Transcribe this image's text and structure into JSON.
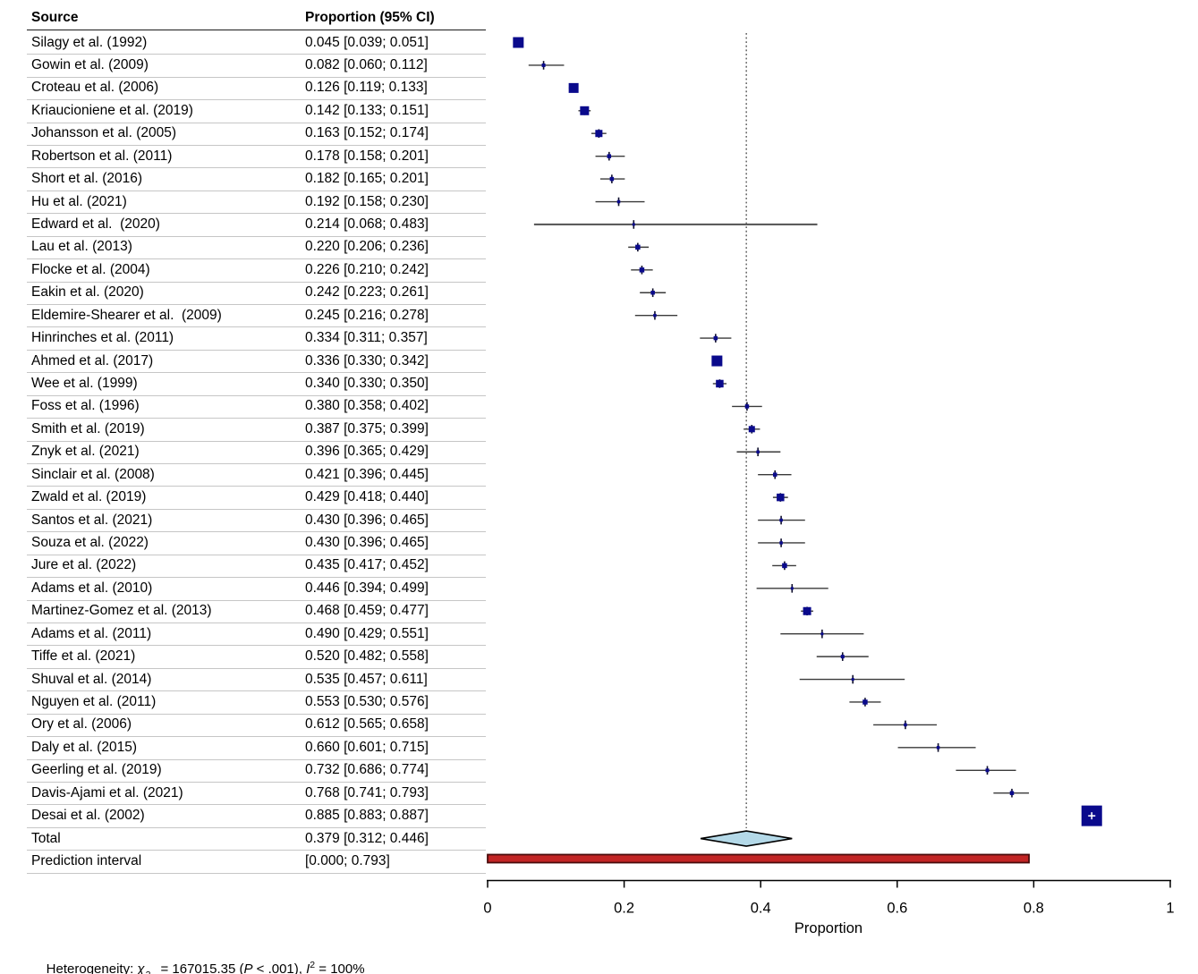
{
  "columns": {
    "source": "Source",
    "proportion": "Proportion (95% CI)"
  },
  "axis": {
    "label": "Proportion"
  },
  "heterogeneity": {
    "prefix": "Heterogeneity: ",
    "chi": "χ",
    "chi_sup": "2",
    "chi_sub": "34",
    "mid1": " = 167015.35 (",
    "p_label": "P",
    "mid2": " < .001), ",
    "i_label": "I",
    "i_sup": "2",
    "suffix": " = 100%"
  },
  "colors": {
    "marker": "#0a0a8c",
    "tick": "#0d0d2b",
    "ci_line": "#3a3a3a",
    "ref_line": "#555555",
    "diamond_fill": "#b4d9e8",
    "diamond_stroke": "#000000",
    "prediction_fill": "#c22424",
    "prediction_stroke": "#4a0c0c",
    "axis": "#000000",
    "separator": "#c6c6c6"
  },
  "chart_data": {
    "type": "scatter",
    "variant": "forest-plot",
    "title": "",
    "xlabel": "Proportion",
    "xlim": [
      0,
      1
    ],
    "x_ticks": [
      0,
      0.2,
      0.4,
      0.6,
      0.8,
      1
    ],
    "x_tick_labels": [
      "0",
      "0.2",
      "0.4",
      "0.6",
      "0.8",
      "1"
    ],
    "reference_line": 0.379,
    "studies": [
      {
        "name": "Silagy et al. (1992)",
        "ci_label": "0.045 [0.039; 0.051]",
        "est": 0.045,
        "lo": 0.039,
        "hi": 0.051,
        "size": 12
      },
      {
        "name": "Gowin et al. (2009)",
        "ci_label": "0.082 [0.060; 0.112]",
        "est": 0.082,
        "lo": 0.06,
        "hi": 0.112,
        "size": 4
      },
      {
        "name": "Croteau et al. (2006)",
        "ci_label": "0.126 [0.119; 0.133]",
        "est": 0.126,
        "lo": 0.119,
        "hi": 0.133,
        "size": 11
      },
      {
        "name": "Kriaucioniene et al. (2019)",
        "ci_label": "0.142 [0.133; 0.151]",
        "est": 0.142,
        "lo": 0.133,
        "hi": 0.151,
        "size": 10
      },
      {
        "name": "Johansson et al. (2005)",
        "ci_label": "0.163 [0.152; 0.174]",
        "est": 0.163,
        "lo": 0.152,
        "hi": 0.174,
        "size": 8
      },
      {
        "name": "Robertson et al. (2011)",
        "ci_label": "0.178 [0.158; 0.201]",
        "est": 0.178,
        "lo": 0.158,
        "hi": 0.201,
        "size": 4.5
      },
      {
        "name": "Short et al. (2016)",
        "ci_label": "0.182 [0.165; 0.201]",
        "est": 0.182,
        "lo": 0.165,
        "hi": 0.201,
        "size": 4.5
      },
      {
        "name": "Hu et al. (2021)",
        "ci_label": "0.192 [0.158; 0.230]",
        "est": 0.192,
        "lo": 0.158,
        "hi": 0.23,
        "size": 3.5
      },
      {
        "name": "Edward et al.  (2020)",
        "ci_label": "0.214 [0.068; 0.483]",
        "est": 0.214,
        "lo": 0.068,
        "hi": 0.483,
        "size": 3,
        "lw": 2.2,
        "lc": "#5c5c5c"
      },
      {
        "name": "Lau et al. (2013)",
        "ci_label": "0.220 [0.206; 0.236]",
        "est": 0.22,
        "lo": 0.206,
        "hi": 0.236,
        "size": 5.5
      },
      {
        "name": "Flocke et al. (2004)",
        "ci_label": "0.226 [0.210; 0.242]",
        "est": 0.226,
        "lo": 0.21,
        "hi": 0.242,
        "size": 5.5
      },
      {
        "name": "Eakin et al. (2020)",
        "ci_label": "0.242 [0.223; 0.261]",
        "est": 0.242,
        "lo": 0.223,
        "hi": 0.261,
        "size": 4.5
      },
      {
        "name": "Eldemire-Shearer et al.  (2009)",
        "ci_label": "0.245 [0.216; 0.278]",
        "est": 0.245,
        "lo": 0.216,
        "hi": 0.278,
        "size": 3.5
      },
      {
        "name": "Hinrinches et al. (2011)",
        "ci_label": "0.334 [0.311; 0.357]",
        "est": 0.334,
        "lo": 0.311,
        "hi": 0.357,
        "size": 4.5
      },
      {
        "name": "Ahmed et al. (2017)",
        "ci_label": "0.336 [0.330; 0.342]",
        "est": 0.336,
        "lo": 0.33,
        "hi": 0.342,
        "size": 12
      },
      {
        "name": "Wee et al. (1999)",
        "ci_label": "0.340 [0.330; 0.350]",
        "est": 0.34,
        "lo": 0.33,
        "hi": 0.35,
        "size": 8.5
      },
      {
        "name": "Foss et al. (1996)",
        "ci_label": "0.380 [0.358; 0.402]",
        "est": 0.38,
        "lo": 0.358,
        "hi": 0.402,
        "size": 4.5
      },
      {
        "name": "Smith et al. (2019)",
        "ci_label": "0.387 [0.375; 0.399]",
        "est": 0.387,
        "lo": 0.375,
        "hi": 0.399,
        "size": 7
      },
      {
        "name": "Znyk et al. (2021)",
        "ci_label": "0.396 [0.365; 0.429]",
        "est": 0.396,
        "lo": 0.365,
        "hi": 0.429,
        "size": 3.5
      },
      {
        "name": "Sinclair et al. (2008)",
        "ci_label": "0.421 [0.396; 0.445]",
        "est": 0.421,
        "lo": 0.396,
        "hi": 0.445,
        "size": 4.5
      },
      {
        "name": "Zwald et al. (2019)",
        "ci_label": "0.429 [0.418; 0.440]",
        "est": 0.429,
        "lo": 0.418,
        "hi": 0.44,
        "size": 8.5
      },
      {
        "name": "Santos et al. (2021)",
        "ci_label": "0.430 [0.396; 0.465]",
        "est": 0.43,
        "lo": 0.396,
        "hi": 0.465,
        "size": 3.5
      },
      {
        "name": "Souza et al. (2022)",
        "ci_label": "0.430 [0.396; 0.465]",
        "est": 0.43,
        "lo": 0.396,
        "hi": 0.465,
        "size": 3.5
      },
      {
        "name": "Jure et al. (2022)",
        "ci_label": "0.435 [0.417; 0.452]",
        "est": 0.435,
        "lo": 0.417,
        "hi": 0.452,
        "size": 5.5
      },
      {
        "name": "Adams et al. (2010)",
        "ci_label": "0.446 [0.394; 0.499]",
        "est": 0.446,
        "lo": 0.394,
        "hi": 0.499,
        "size": 3
      },
      {
        "name": "Martinez-Gomez et al. (2013)",
        "ci_label": "0.468 [0.459; 0.477]",
        "est": 0.468,
        "lo": 0.459,
        "hi": 0.477,
        "size": 9
      },
      {
        "name": "Adams et al. (2011)",
        "ci_label": "0.490 [0.429; 0.551]",
        "est": 0.49,
        "lo": 0.429,
        "hi": 0.551,
        "size": 3
      },
      {
        "name": "Tiffe et al. (2021)",
        "ci_label": "0.520 [0.482; 0.558]",
        "est": 0.52,
        "lo": 0.482,
        "hi": 0.558,
        "size": 4
      },
      {
        "name": "Shuval et al. (2014)",
        "ci_label": "0.535 [0.457; 0.611]",
        "est": 0.535,
        "lo": 0.457,
        "hi": 0.611,
        "size": 3
      },
      {
        "name": "Nguyen et al. (2011)",
        "ci_label": "0.553 [0.530; 0.576]",
        "est": 0.553,
        "lo": 0.53,
        "hi": 0.576,
        "size": 5.5
      },
      {
        "name": "Ory et al. (2006)",
        "ci_label": "0.612 [0.565; 0.658]",
        "est": 0.612,
        "lo": 0.565,
        "hi": 0.658,
        "size": 3.5
      },
      {
        "name": "Daly et al. (2015)",
        "ci_label": "0.660 [0.601; 0.715]",
        "est": 0.66,
        "lo": 0.601,
        "hi": 0.715,
        "size": 3.5
      },
      {
        "name": "Geerling et al. (2019)",
        "ci_label": "0.732 [0.686; 0.774]",
        "est": 0.732,
        "lo": 0.686,
        "hi": 0.774,
        "size": 4
      },
      {
        "name": "Davis-Ajami et al. (2021)",
        "ci_label": "0.768 [0.741; 0.793]",
        "est": 0.768,
        "lo": 0.741,
        "hi": 0.793,
        "size": 4.5
      },
      {
        "name": "Desai et al. (2002)",
        "ci_label": "0.885 [0.883; 0.887]",
        "est": 0.885,
        "lo": 0.883,
        "hi": 0.887,
        "size": 23
      }
    ],
    "total": {
      "name": "Total",
      "ci_label": "0.379 [0.312; 0.446]",
      "est": 0.379,
      "lo": 0.312,
      "hi": 0.446
    },
    "prediction_interval": {
      "name": "Prediction interval",
      "ci_label": "[0.000; 0.793]",
      "lo": 0.0,
      "hi": 0.793
    },
    "heterogeneity_text": "Heterogeneity: χ²₃₄ = 167015.35 (P < .001), I² = 100%"
  }
}
